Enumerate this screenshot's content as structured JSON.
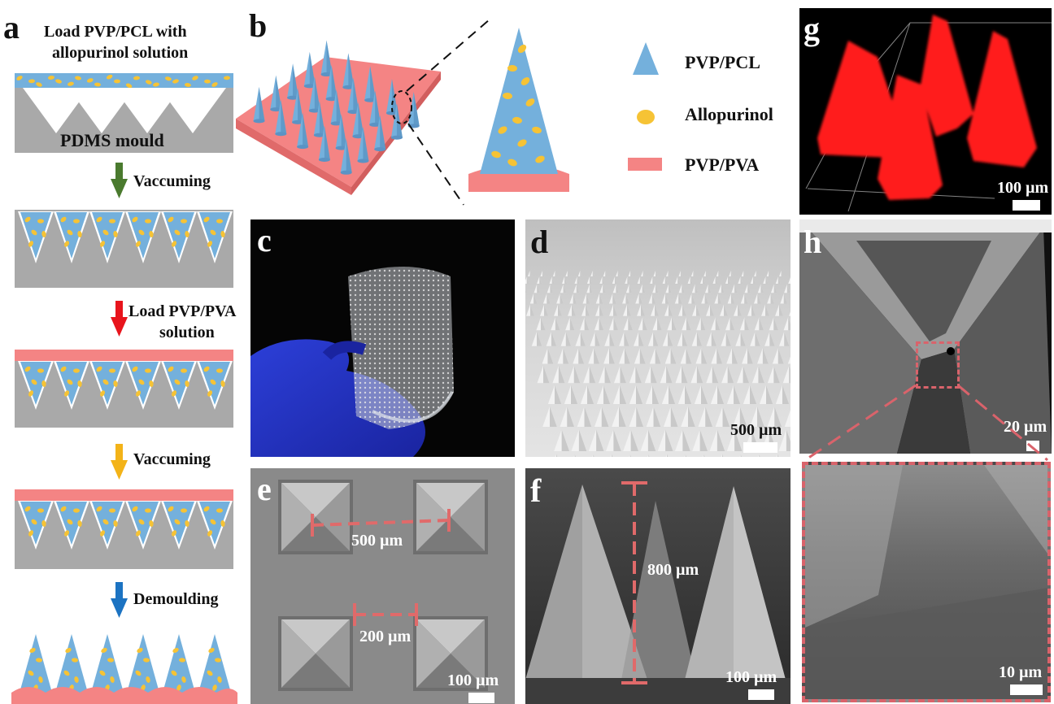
{
  "panels": {
    "a": {
      "label": "a",
      "step0_text": "Load PVP/PCL with allopurinol solution",
      "step0_line1": "Load PVP/PCL with",
      "step0_line2": "allopurinol solution",
      "mould_label": "PDMS mould",
      "steps": [
        {
          "label": "Vaccuming",
          "arrow_color": "#4a7a2e"
        },
        {
          "label_line1": "Load PVP/PVA",
          "label_line2": "solution",
          "arrow_color": "#e8141c"
        },
        {
          "label": "Vaccuming",
          "arrow_color": "#f3b318"
        },
        {
          "label": "Demoulding",
          "arrow_color": "#1c73c2"
        }
      ]
    },
    "b": {
      "label": "b",
      "legend": [
        {
          "name": "PVP/PCL",
          "color": "#74b0dc",
          "shape": "triangle"
        },
        {
          "name": "Allopurinol",
          "color": "#f6c335",
          "shape": "ellipse"
        },
        {
          "name": "PVP/PVA",
          "color": "#f48484",
          "shape": "rectangle"
        }
      ]
    },
    "c": {
      "label": "c"
    },
    "d": {
      "label": "d",
      "scale_bar": "500 µm"
    },
    "e": {
      "label": "e",
      "spacing_center": "500 µm",
      "spacing_gap": "200 µm",
      "scale_bar": "100 µm"
    },
    "f": {
      "label": "f",
      "height": "800 µm",
      "scale_bar": "100 µm"
    },
    "g": {
      "label": "g",
      "scale_bar": "100 µm"
    },
    "h": {
      "label": "h",
      "scale_bar": "20 µm",
      "inset_scale_bar": "10 µm"
    }
  },
  "colors": {
    "pcl": "#74b0dc",
    "drug": "#f6c335",
    "pva": "#f48484",
    "mould": "#a9a9a9",
    "dashed": "#d9636b"
  }
}
